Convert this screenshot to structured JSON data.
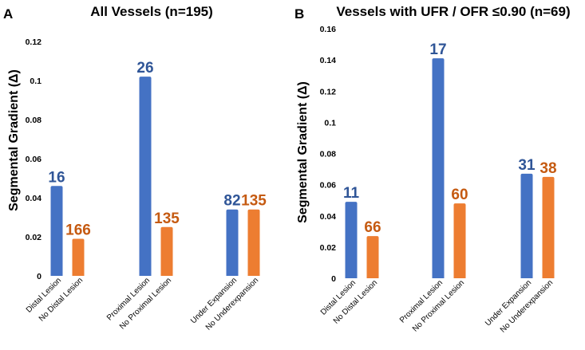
{
  "colors": {
    "blue": "#4472C4",
    "orange": "#ED7D31",
    "blue_label": "#2F5597",
    "orange_label": "#C55A11",
    "text": "#000000"
  },
  "chart_data": [
    {
      "type": "bar",
      "panel_letter": "A",
      "title": "All Vessels (n=195)",
      "ylabel": "Segmental Gradient (Δ)",
      "ylim": [
        0,
        0.12
      ],
      "yticks": [
        "0",
        "0.02",
        "0.04",
        "0.06",
        "0.08",
        "0.1",
        "0.12"
      ],
      "ytick_values": [
        0,
        0.02,
        0.04,
        0.06,
        0.08,
        0.1,
        0.12
      ],
      "grid": false,
      "groups": [
        {
          "bars": [
            {
              "category": "Distal Lesion",
              "value": 0.046,
              "n": "16",
              "series": "blue"
            },
            {
              "category": "No Distal Lesion",
              "value": 0.019,
              "n": "166",
              "series": "orange"
            }
          ]
        },
        {
          "bars": [
            {
              "category": "Proximal Lesion",
              "value": 0.102,
              "n": "26",
              "series": "blue"
            },
            {
              "category": "No Proximal Lesion",
              "value": 0.025,
              "n": "135",
              "series": "orange"
            }
          ]
        },
        {
          "bars": [
            {
              "category": "Under Expansion",
              "value": 0.034,
              "n": "82",
              "series": "blue"
            },
            {
              "category": "No Underexpansion",
              "value": 0.034,
              "n": "135",
              "series": "orange"
            }
          ]
        }
      ]
    },
    {
      "type": "bar",
      "panel_letter": "B",
      "title": "Vessels with UFR / OFR ≤0.90 (n=69)",
      "ylabel": "Segmental Gradient (Δ)",
      "ylim": [
        0,
        0.16
      ],
      "yticks": [
        "0",
        "0.02",
        "0.04",
        "0.06",
        "0.08",
        "0.1",
        "0.12",
        "0.14",
        "0.16"
      ],
      "ytick_values": [
        0,
        0.02,
        0.04,
        0.06,
        0.08,
        0.1,
        0.12,
        0.14,
        0.16
      ],
      "grid": false,
      "groups": [
        {
          "bars": [
            {
              "category": "Distal Lesion",
              "value": 0.049,
              "n": "11",
              "series": "blue"
            },
            {
              "category": "No Distal Lesion",
              "value": 0.027,
              "n": "66",
              "series": "orange"
            }
          ]
        },
        {
          "bars": [
            {
              "category": "Proximal Lesion",
              "value": 0.141,
              "n": "17",
              "series": "blue"
            },
            {
              "category": "No Proximal Lesion",
              "value": 0.048,
              "n": "60",
              "series": "orange"
            }
          ]
        },
        {
          "bars": [
            {
              "category": "Under Expansion",
              "value": 0.067,
              "n": "31",
              "series": "blue"
            },
            {
              "category": "No Underexpansion",
              "value": 0.065,
              "n": "38",
              "series": "orange"
            }
          ]
        }
      ]
    }
  ]
}
